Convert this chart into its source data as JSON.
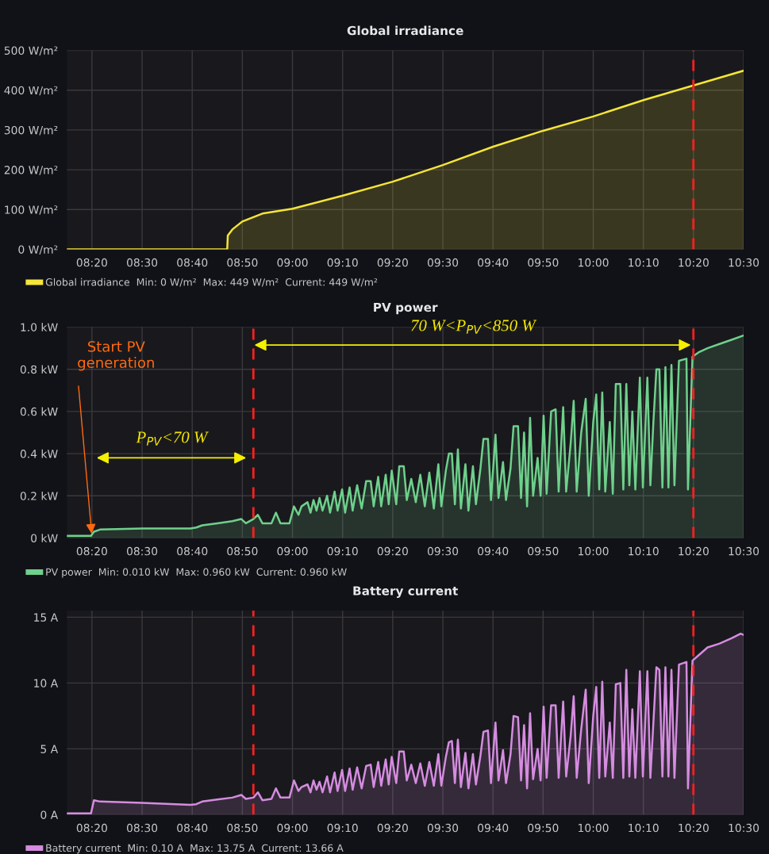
{
  "chart_data": [
    {
      "type": "area",
      "title": "Global irradiance",
      "xlim": [
        8.25,
        10.5
      ],
      "ylim": [
        0,
        500
      ],
      "xticks": [
        {
          "value": 8.3333,
          "label": "08:20"
        },
        {
          "value": 8.5,
          "label": "08:30"
        },
        {
          "value": 8.6667,
          "label": "08:40"
        },
        {
          "value": 8.8333,
          "label": "08:50"
        },
        {
          "value": 9,
          "label": "09:00"
        },
        {
          "value": 9.1667,
          "label": "09:10"
        },
        {
          "value": 9.3333,
          "label": "09:20"
        },
        {
          "value": 9.5,
          "label": "09:30"
        },
        {
          "value": 9.6667,
          "label": "09:40"
        },
        {
          "value": 9.8333,
          "label": "09:50"
        },
        {
          "value": 10,
          "label": "10:00"
        },
        {
          "value": 10.1667,
          "label": "10:10"
        },
        {
          "value": 10.3333,
          "label": "10:20"
        },
        {
          "value": 10.5,
          "label": "10:30"
        }
      ],
      "yticks": [
        {
          "value": 0,
          "label": "0 W/m²"
        },
        {
          "value": 100,
          "label": "100 W/m²"
        },
        {
          "value": 200,
          "label": "200 W/m²"
        },
        {
          "value": 300,
          "label": "300 W/m²"
        },
        {
          "value": 400,
          "label": "400 W/m²"
        },
        {
          "value": 500,
          "label": "500 W/m²"
        }
      ],
      "grid": true,
      "legend": "bottom left",
      "ref_lines": [
        {
          "axis": "x",
          "value": 10.333,
          "color": "#ff2020",
          "line_style": "dashed"
        }
      ],
      "series": [
        {
          "name": "Global irradiance  Min: 0 W/m²  Max: 449 W/m²  Current: 449 W/m²",
          "color": "#f5e538",
          "x": [
            8.25,
            8.783,
            8.785,
            8.8,
            8.833,
            8.9,
            9.0,
            9.167,
            9.333,
            9.5,
            9.667,
            9.833,
            10.0,
            10.167,
            10.333,
            10.5
          ],
          "values": [
            0,
            0,
            35,
            50,
            70,
            90,
            102,
            135,
            170,
            212,
            258,
            298,
            334,
            375,
            412,
            449
          ]
        }
      ]
    },
    {
      "type": "area",
      "title": "PV power",
      "xlim": [
        8.25,
        10.5
      ],
      "ylim": [
        0,
        1.0
      ],
      "xticks": [
        {
          "value": 8.3333,
          "label": "08:20"
        },
        {
          "value": 8.5,
          "label": "08:30"
        },
        {
          "value": 8.6667,
          "label": "08:40"
        },
        {
          "value": 8.8333,
          "label": "08:50"
        },
        {
          "value": 9,
          "label": "09:00"
        },
        {
          "value": 9.1667,
          "label": "09:10"
        },
        {
          "value": 9.3333,
          "label": "09:20"
        },
        {
          "value": 9.5,
          "label": "09:30"
        },
        {
          "value": 9.6667,
          "label": "09:40"
        },
        {
          "value": 9.8333,
          "label": "09:50"
        },
        {
          "value": 10,
          "label": "10:00"
        },
        {
          "value": 10.1667,
          "label": "10:10"
        },
        {
          "value": 10.3333,
          "label": "10:20"
        },
        {
          "value": 10.5,
          "label": "10:30"
        }
      ],
      "yticks": [
        {
          "value": 0,
          "label": "0 kW"
        },
        {
          "value": 0.2,
          "label": "0.2 kW"
        },
        {
          "value": 0.4,
          "label": "0.4 kW"
        },
        {
          "value": 0.6,
          "label": "0.6 kW"
        },
        {
          "value": 0.8,
          "label": "0.8 kW"
        },
        {
          "value": 1.0,
          "label": "1.0 kW"
        }
      ],
      "grid": true,
      "legend": "bottom left",
      "ref_lines": [
        {
          "axis": "x",
          "value": 8.87,
          "color": "#ff2020",
          "line_style": "dashed"
        },
        {
          "axis": "x",
          "value": 10.333,
          "color": "#ff2020",
          "line_style": "dashed"
        }
      ],
      "annotations": [
        {
          "text": "Start PV\ngeneration",
          "x": 8.333,
          "y": 0.01
        },
        "P$_{PV}$<70 W",
        "70 W<P$_{PV}$<850 W"
      ],
      "series": [
        {
          "name": "PV power  Min: 0.010 kW  Max: 0.960 kW  Current: 0.960 kW",
          "color": "#6fd08c",
          "x": [
            8.25,
            8.33,
            8.34,
            8.36,
            8.5,
            8.66,
            8.68,
            8.7,
            8.75,
            8.8,
            8.83,
            8.845,
            8.87,
            8.885,
            8.9,
            8.93,
            8.945,
            8.96,
            8.99,
            9.005,
            9.02,
            9.03,
            9.05,
            9.06,
            9.07,
            9.08,
            9.09,
            9.1,
            9.115,
            9.125,
            9.14,
            9.15,
            9.165,
            9.175,
            9.19,
            9.2,
            9.215,
            9.23,
            9.245,
            9.26,
            9.27,
            9.285,
            9.295,
            9.31,
            9.32,
            9.33,
            9.345,
            9.355,
            9.37,
            9.38,
            9.395,
            9.41,
            9.425,
            9.44,
            9.455,
            9.47,
            9.485,
            9.495,
            9.51,
            9.52,
            9.53,
            9.54,
            9.55,
            9.56,
            9.575,
            9.585,
            9.6,
            9.61,
            9.625,
            9.635,
            9.65,
            9.66,
            9.675,
            9.685,
            9.7,
            9.71,
            9.725,
            9.735,
            9.75,
            9.76,
            9.77,
            9.78,
            9.79,
            9.8,
            9.815,
            9.825,
            9.835,
            9.845,
            9.86,
            9.875,
            9.885,
            9.9,
            9.91,
            9.925,
            9.935,
            9.945,
            9.96,
            9.975,
            9.985,
            10.0,
            10.01,
            10.02,
            10.03,
            10.04,
            10.055,
            10.065,
            10.075,
            10.09,
            10.1,
            10.11,
            10.12,
            10.13,
            10.14,
            10.155,
            10.165,
            10.18,
            10.19,
            10.2,
            10.21,
            10.22,
            10.23,
            10.24,
            10.25,
            10.26,
            10.27,
            10.285,
            10.31,
            10.315,
            10.33,
            10.35,
            10.38,
            10.42,
            10.46,
            10.5
          ],
          "values": [
            0.01,
            0.01,
            0.03,
            0.04,
            0.045,
            0.045,
            0.05,
            0.06,
            0.07,
            0.08,
            0.09,
            0.07,
            0.09,
            0.11,
            0.07,
            0.07,
            0.12,
            0.07,
            0.07,
            0.15,
            0.11,
            0.15,
            0.17,
            0.12,
            0.18,
            0.13,
            0.19,
            0.13,
            0.2,
            0.12,
            0.22,
            0.13,
            0.23,
            0.12,
            0.24,
            0.13,
            0.25,
            0.14,
            0.27,
            0.27,
            0.15,
            0.29,
            0.15,
            0.3,
            0.16,
            0.32,
            0.16,
            0.34,
            0.34,
            0.18,
            0.28,
            0.17,
            0.3,
            0.15,
            0.31,
            0.14,
            0.35,
            0.15,
            0.32,
            0.4,
            0.4,
            0.16,
            0.42,
            0.14,
            0.35,
            0.13,
            0.34,
            0.16,
            0.33,
            0.47,
            0.47,
            0.18,
            0.49,
            0.19,
            0.36,
            0.18,
            0.33,
            0.53,
            0.53,
            0.19,
            0.5,
            0.15,
            0.57,
            0.2,
            0.38,
            0.2,
            0.58,
            0.21,
            0.6,
            0.61,
            0.22,
            0.62,
            0.22,
            0.45,
            0.65,
            0.22,
            0.5,
            0.66,
            0.2,
            0.55,
            0.68,
            0.23,
            0.69,
            0.22,
            0.55,
            0.21,
            0.73,
            0.73,
            0.23,
            0.73,
            0.25,
            0.6,
            0.23,
            0.76,
            0.24,
            0.76,
            0.25,
            0.55,
            0.8,
            0.8,
            0.24,
            0.81,
            0.24,
            0.82,
            0.25,
            0.84,
            0.85,
            0.23,
            0.86,
            0.88,
            0.9,
            0.92,
            0.94,
            0.96
          ]
        }
      ]
    },
    {
      "type": "area",
      "title": "Battery current",
      "xlim": [
        8.25,
        10.5
      ],
      "ylim": [
        0,
        15.5
      ],
      "xticks": [
        {
          "value": 8.3333,
          "label": "08:20"
        },
        {
          "value": 8.5,
          "label": "08:30"
        },
        {
          "value": 8.6667,
          "label": "08:40"
        },
        {
          "value": 8.8333,
          "label": "08:50"
        },
        {
          "value": 9,
          "label": "09:00"
        },
        {
          "value": 9.1667,
          "label": "09:10"
        },
        {
          "value": 9.3333,
          "label": "09:20"
        },
        {
          "value": 9.5,
          "label": "09:30"
        },
        {
          "value": 9.6667,
          "label": "09:40"
        },
        {
          "value": 9.8333,
          "label": "09:50"
        },
        {
          "value": 10,
          "label": "10:00"
        },
        {
          "value": 10.1667,
          "label": "10:10"
        },
        {
          "value": 10.3333,
          "label": "10:20"
        },
        {
          "value": 10.5,
          "label": "10:30"
        }
      ],
      "yticks": [
        {
          "value": 0,
          "label": "0 A"
        },
        {
          "value": 5,
          "label": "5 A"
        },
        {
          "value": 10,
          "label": "10 A"
        },
        {
          "value": 15,
          "label": "15 A"
        }
      ],
      "grid": true,
      "legend": "bottom left",
      "ref_lines": [
        {
          "axis": "x",
          "value": 8.87,
          "color": "#ff2020",
          "line_style": "dashed"
        },
        {
          "axis": "x",
          "value": 10.333,
          "color": "#ff2020",
          "line_style": "dashed"
        }
      ],
      "series": [
        {
          "name": "Battery current  Min: 0.10 A  Max: 13.75 A  Current: 13.66 A",
          "color": "#d58ce0",
          "x": [
            8.25,
            8.33,
            8.34,
            8.36,
            8.5,
            8.66,
            8.68,
            8.7,
            8.75,
            8.8,
            8.83,
            8.845,
            8.87,
            8.885,
            8.9,
            8.93,
            8.945,
            8.96,
            8.99,
            9.005,
            9.02,
            9.03,
            9.05,
            9.06,
            9.07,
            9.08,
            9.09,
            9.1,
            9.115,
            9.125,
            9.14,
            9.15,
            9.165,
            9.175,
            9.19,
            9.2,
            9.215,
            9.23,
            9.245,
            9.26,
            9.27,
            9.285,
            9.295,
            9.31,
            9.32,
            9.33,
            9.345,
            9.355,
            9.37,
            9.38,
            9.395,
            9.41,
            9.425,
            9.44,
            9.455,
            9.47,
            9.485,
            9.495,
            9.51,
            9.52,
            9.53,
            9.54,
            9.55,
            9.56,
            9.575,
            9.585,
            9.6,
            9.61,
            9.625,
            9.635,
            9.65,
            9.66,
            9.675,
            9.685,
            9.7,
            9.71,
            9.725,
            9.735,
            9.75,
            9.76,
            9.77,
            9.78,
            9.79,
            9.8,
            9.815,
            9.825,
            9.835,
            9.845,
            9.86,
            9.875,
            9.885,
            9.9,
            9.91,
            9.925,
            9.935,
            9.945,
            9.96,
            9.975,
            9.985,
            10.0,
            10.01,
            10.02,
            10.03,
            10.04,
            10.055,
            10.065,
            10.075,
            10.09,
            10.1,
            10.11,
            10.12,
            10.13,
            10.14,
            10.155,
            10.165,
            10.18,
            10.19,
            10.2,
            10.21,
            10.22,
            10.23,
            10.24,
            10.25,
            10.26,
            10.27,
            10.285,
            10.31,
            10.315,
            10.33,
            10.35,
            10.38,
            10.42,
            10.46,
            10.49,
            10.5
          ],
          "values": [
            0.1,
            0.1,
            1.1,
            1.0,
            0.9,
            0.75,
            0.8,
            1.0,
            1.15,
            1.3,
            1.5,
            1.2,
            1.3,
            1.7,
            1.1,
            1.2,
            2.0,
            1.3,
            1.3,
            2.6,
            1.8,
            2.1,
            2.3,
            1.7,
            2.6,
            1.9,
            2.5,
            1.7,
            2.9,
            1.7,
            3.2,
            1.8,
            3.4,
            1.8,
            3.5,
            1.9,
            3.6,
            2.0,
            3.7,
            3.8,
            2.1,
            4.0,
            2.2,
            4.2,
            2.3,
            4.4,
            2.4,
            4.8,
            4.8,
            2.6,
            3.8,
            2.4,
            3.9,
            2.2,
            4.0,
            2.2,
            4.6,
            2.2,
            4.4,
            5.5,
            5.6,
            2.4,
            5.7,
            2.1,
            4.7,
            2.0,
            4.6,
            2.3,
            4.5,
            6.3,
            6.4,
            2.4,
            7.0,
            2.6,
            4.9,
            2.4,
            4.6,
            7.5,
            7.4,
            2.6,
            6.8,
            2.0,
            7.7,
            2.7,
            5.0,
            2.6,
            8.2,
            2.8,
            8.3,
            8.3,
            2.8,
            8.6,
            2.9,
            6.0,
            9.0,
            2.8,
            6.5,
            9.5,
            2.4,
            7.5,
            9.7,
            2.8,
            10.1,
            2.9,
            7.0,
            2.8,
            9.9,
            10.0,
            2.8,
            11.0,
            2.9,
            8.0,
            2.8,
            10.9,
            2.9,
            10.9,
            2.8,
            7.0,
            11.2,
            11.0,
            2.9,
            11.2,
            2.9,
            11.0,
            2.8,
            11.4,
            11.6,
            2.0,
            11.7,
            12.1,
            12.7,
            13.0,
            13.4,
            13.75,
            13.66
          ]
        }
      ]
    }
  ]
}
